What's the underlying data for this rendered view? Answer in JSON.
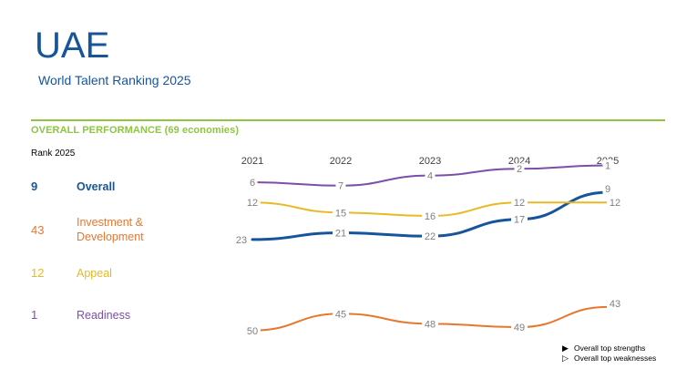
{
  "header": {
    "title": "UAE",
    "subtitle": "World Talent Ranking 2025"
  },
  "section": {
    "title": "OVERALL PERFORMANCE  (69 economies)"
  },
  "ranks_header": "Rank 2025",
  "rows": [
    {
      "rank": "9",
      "label": "Overall",
      "color": "#17559b",
      "bold": true
    },
    {
      "rank": "43",
      "label": "Investment & Development",
      "color": "#e8772e",
      "bold": false
    },
    {
      "rank": "12",
      "label": "Appeal",
      "color": "#e8b923",
      "bold": false
    },
    {
      "rank": "1",
      "label": "Readiness",
      "color": "#7b4fa8",
      "bold": false
    }
  ],
  "legend": {
    "strengths": "Overall top strengths",
    "weaknesses": "Overall top weaknesses",
    "strengths_icon": "filled-triangle-icon",
    "weaknesses_icon": "outline-triangle-icon"
  },
  "chart_data": {
    "type": "line",
    "x": [
      "2021",
      "2022",
      "2023",
      "2024",
      "2025"
    ],
    "series": [
      {
        "name": "Overall",
        "values": [
          23,
          21,
          22,
          17,
          9
        ],
        "color": "#17559b"
      },
      {
        "name": "Investment & Development",
        "values": [
          50,
          45,
          48,
          49,
          43
        ],
        "color": "#e8772e"
      },
      {
        "name": "Appeal",
        "values": [
          12,
          15,
          16,
          12,
          12
        ],
        "color": "#e8b923"
      },
      {
        "name": "Readiness",
        "values": [
          6,
          7,
          4,
          2,
          1
        ],
        "color": "#7b4fa8"
      }
    ],
    "label_color": "#7f7f7f",
    "grid": false
  }
}
